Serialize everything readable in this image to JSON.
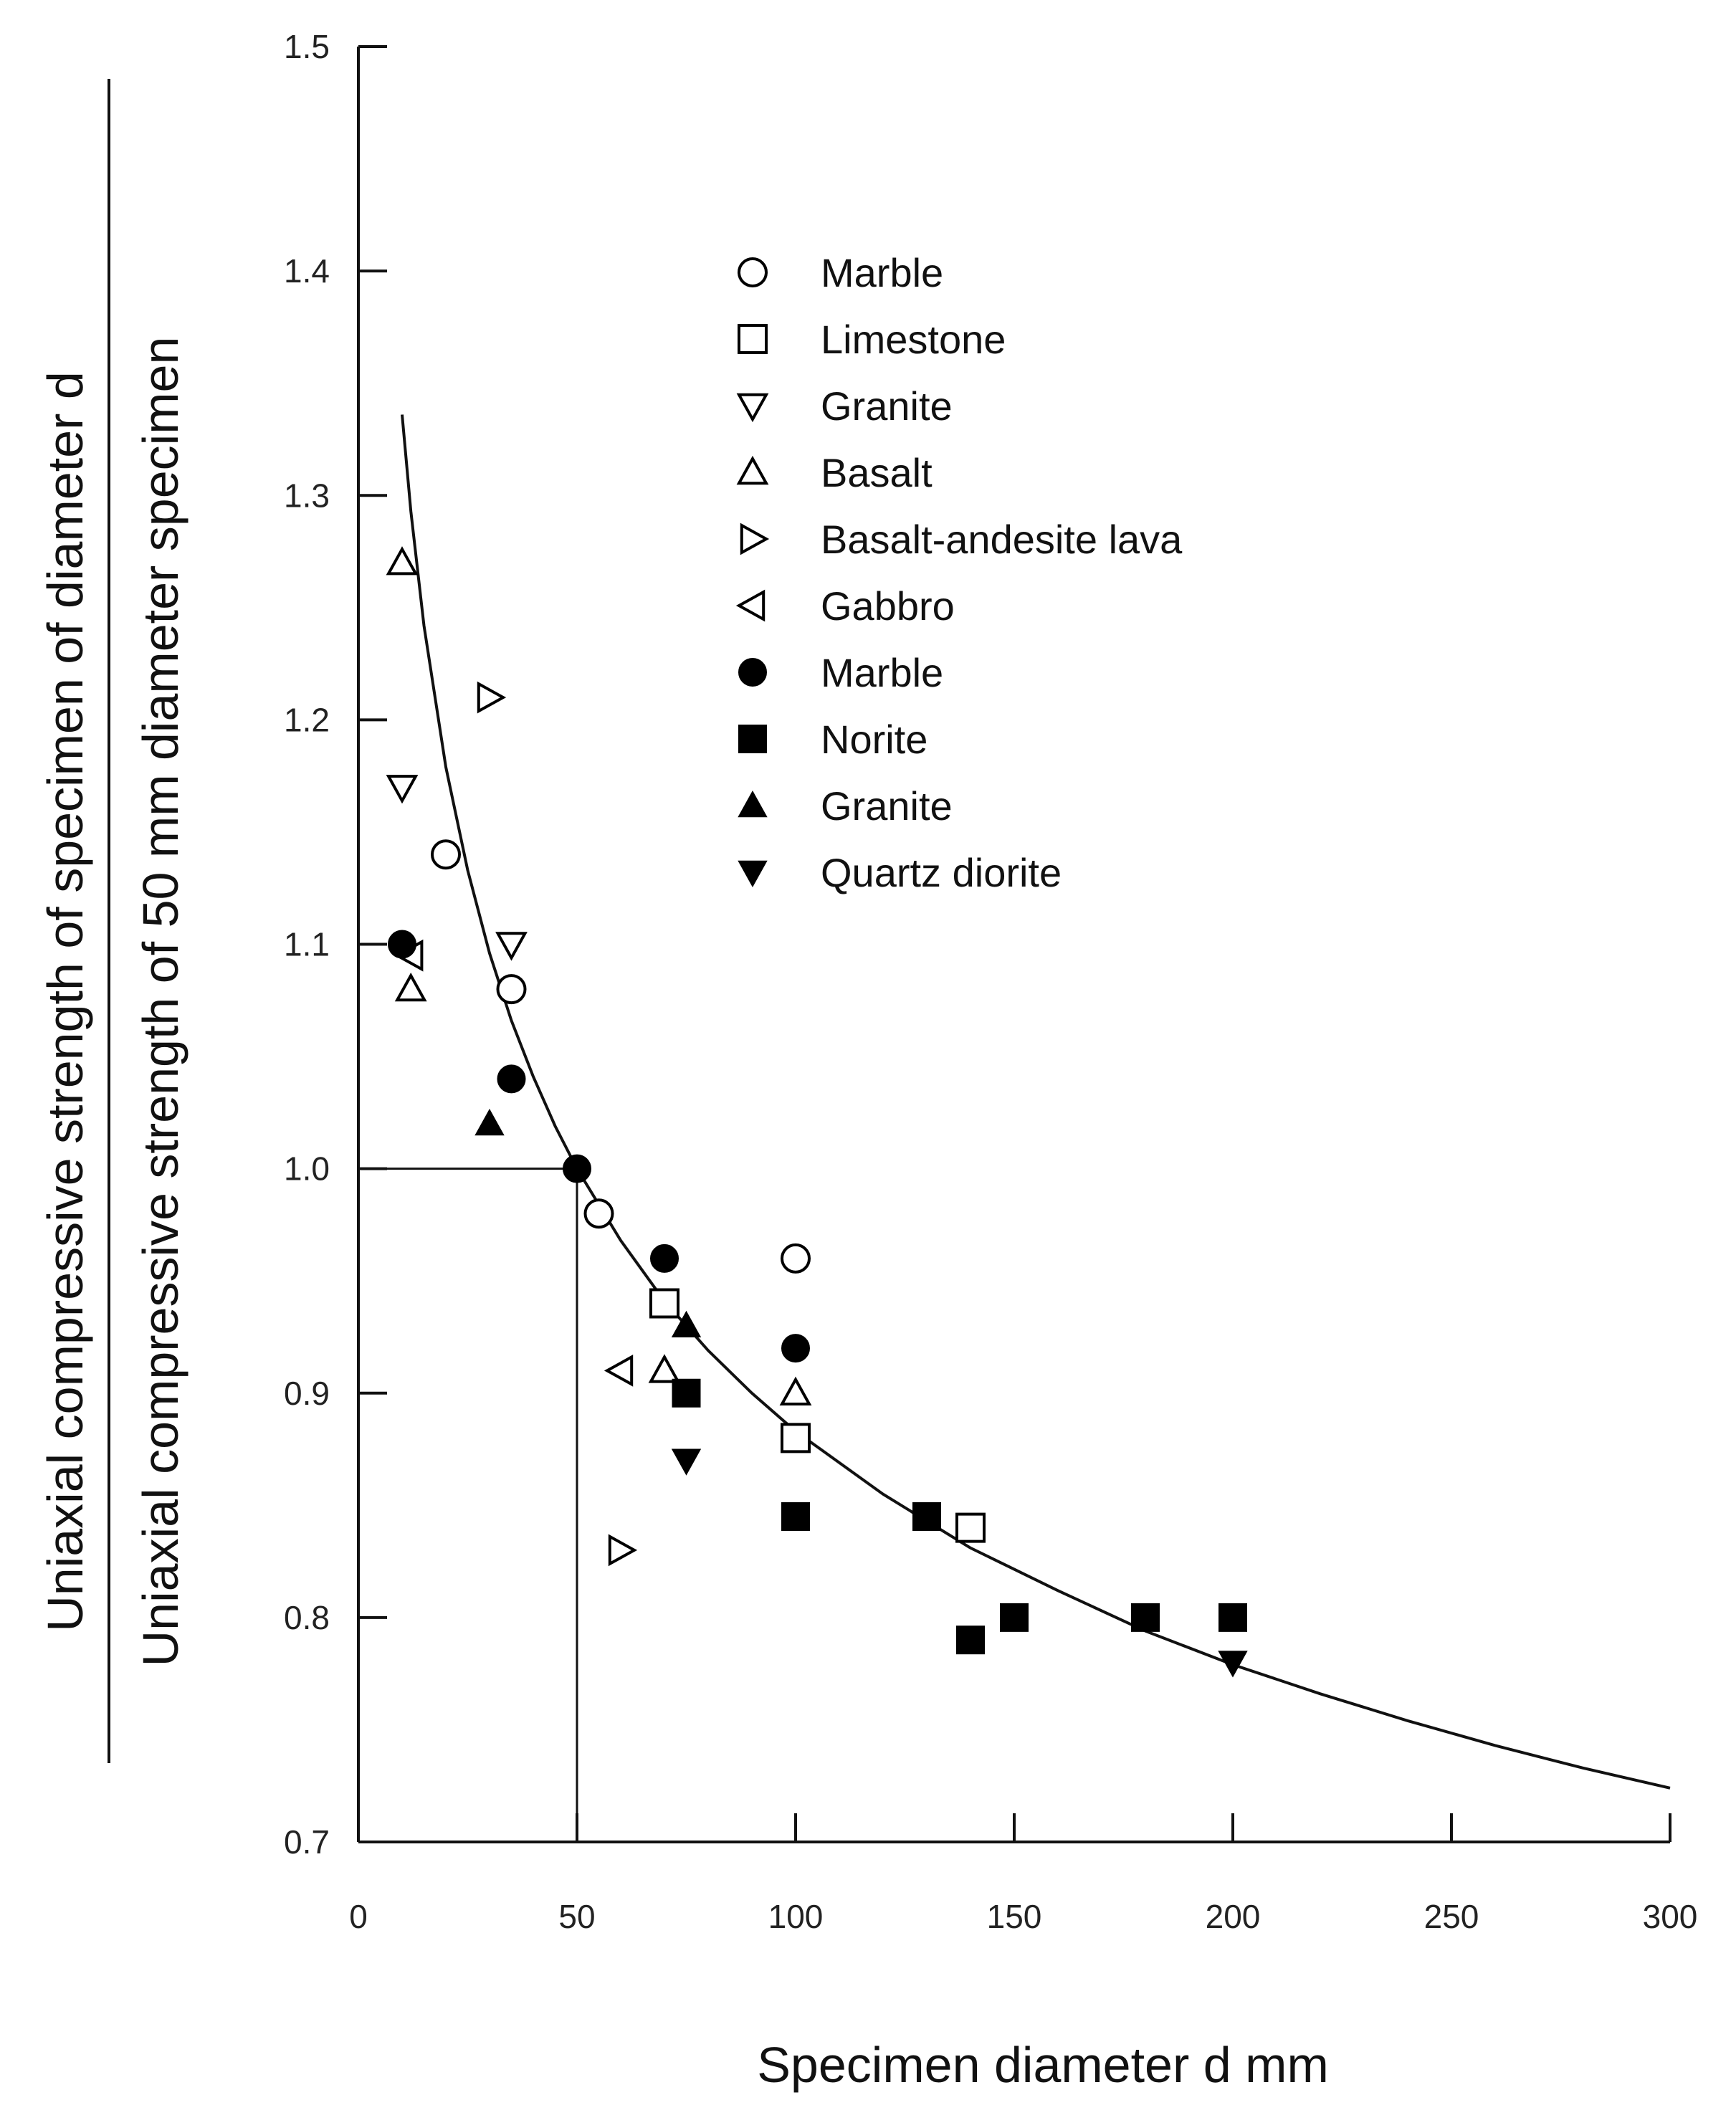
{
  "chart_data": {
    "type": "scatter",
    "title": "",
    "xlabel": "Specimen diameter  d  mm",
    "ylabel_numerator": "Uniaxial compressive strength of specimen of diameter d",
    "ylabel_denominator": "Uniaxial compressive strength of 50 mm diameter specimen",
    "xlim": [
      0,
      300
    ],
    "ylim": [
      0.7,
      1.5
    ],
    "xticks": [
      0,
      50,
      100,
      150,
      200,
      250,
      300
    ],
    "xtick_labels": [
      "0",
      "50",
      "100",
      "150",
      "200",
      "250",
      "300"
    ],
    "yticks": [
      0.7,
      0.8,
      0.9,
      1.0,
      1.1,
      1.2,
      1.3,
      1.4,
      1.5
    ],
    "ytick_labels": [
      "0.7",
      "0.8",
      "0.9",
      "1.0",
      "1.1",
      "1.2",
      "1.3",
      "1.4",
      "1.5"
    ],
    "grid": false,
    "legend_position": "upper-center",
    "reference_point": {
      "x": 50,
      "y": 1.0
    },
    "fit_curve": {
      "description": "fitted curve (d/50)^-0.18",
      "x": [
        10,
        12,
        15,
        20,
        25,
        30,
        35,
        40,
        45,
        50,
        60,
        70,
        80,
        90,
        100,
        120,
        140,
        160,
        180,
        200,
        220,
        240,
        260,
        280,
        300
      ],
      "y": [
        1.336,
        1.293,
        1.242,
        1.179,
        1.133,
        1.096,
        1.066,
        1.041,
        1.019,
        1.0,
        0.968,
        0.941,
        0.919,
        0.9,
        0.883,
        0.855,
        0.831,
        0.812,
        0.794,
        0.779,
        0.766,
        0.754,
        0.743,
        0.733,
        0.724
      ]
    },
    "series": [
      {
        "name": "Marble",
        "marker": "circle-open",
        "x": [
          20,
          35,
          55,
          100
        ],
        "y": [
          1.14,
          1.08,
          0.98,
          0.96
        ]
      },
      {
        "name": "Limestone",
        "marker": "square-open",
        "x": [
          70,
          100,
          140
        ],
        "y": [
          0.94,
          0.88,
          0.84
        ]
      },
      {
        "name": "Granite",
        "marker": "triangle-down-open",
        "x": [
          10,
          35
        ],
        "y": [
          1.17,
          1.1
        ]
      },
      {
        "name": "Basalt",
        "marker": "triangle-up-open",
        "x": [
          10,
          12,
          70,
          100
        ],
        "y": [
          1.27,
          1.08,
          0.91,
          0.9
        ]
      },
      {
        "name": "Basalt-andesite lava",
        "marker": "triangle-right-open",
        "x": [
          30,
          60
        ],
        "y": [
          1.21,
          0.83
        ]
      },
      {
        "name": "Gabbro",
        "marker": "triangle-left-open",
        "x": [
          12,
          60
        ],
        "y": [
          1.095,
          0.91
        ]
      },
      {
        "name": "Marble",
        "marker": "circle-filled",
        "x": [
          10,
          35,
          50,
          70,
          100
        ],
        "y": [
          1.1,
          1.04,
          1.0,
          0.96,
          0.92
        ]
      },
      {
        "name": "Norite",
        "marker": "square-filled",
        "x": [
          75,
          100,
          130,
          140,
          150,
          180,
          200
        ],
        "y": [
          0.9,
          0.845,
          0.845,
          0.79,
          0.8,
          0.8,
          0.8
        ]
      },
      {
        "name": "Granite",
        "marker": "triangle-up-filled",
        "x": [
          30,
          75
        ],
        "y": [
          1.02,
          0.93
        ]
      },
      {
        "name": "Quartz diorite",
        "marker": "triangle-down-filled",
        "x": [
          75,
          200
        ],
        "y": [
          0.87,
          0.78
        ]
      }
    ]
  }
}
